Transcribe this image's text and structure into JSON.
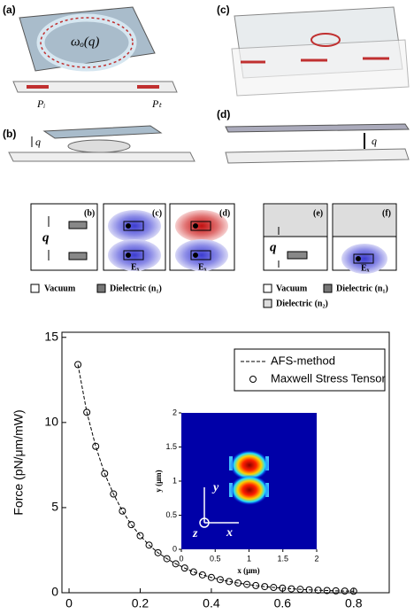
{
  "figure_top": {
    "panel_a": "(a)",
    "panel_b": "(b)",
    "panel_c": "(c)",
    "panel_d": "(d)",
    "resonance": "ωₒ(q)",
    "p_in": "Pᵢ",
    "p_out": "Pₜ",
    "gap_b": "q",
    "gap_d": "q"
  },
  "modes": {
    "panels": [
      "(b)",
      "(c)",
      "(d)",
      "(e)",
      "(f)"
    ],
    "gap_left": "q",
    "gap_right": "q",
    "field_labels": [
      "Eₓ",
      "Eₓ",
      "Eₓ"
    ],
    "legend_left": [
      "Vacuum",
      "Dielectric (n₁)"
    ],
    "legend_right": [
      "Vacuum",
      "Dielectric (n₁)",
      "Dielectric (n₂)"
    ]
  },
  "chart_data": {
    "type": "line",
    "ylabel": "Force (pN/μm/mW)",
    "x": [
      0.025,
      0.05,
      0.075,
      0.1,
      0.125,
      0.15,
      0.175,
      0.2,
      0.225,
      0.25,
      0.275,
      0.3,
      0.325,
      0.35,
      0.375,
      0.4,
      0.425,
      0.45,
      0.475,
      0.5,
      0.525,
      0.55,
      0.575,
      0.6,
      0.625,
      0.65,
      0.675,
      0.7,
      0.725,
      0.75,
      0.775,
      0.8
    ],
    "series": [
      {
        "name": "AFS-method",
        "color": "#000000",
        "style": "dashed",
        "values": [
          13.4,
          10.6,
          8.6,
          7.0,
          5.8,
          4.8,
          4.0,
          3.35,
          2.8,
          2.35,
          2.0,
          1.7,
          1.45,
          1.22,
          1.05,
          0.9,
          0.77,
          0.66,
          0.57,
          0.49,
          0.42,
          0.36,
          0.31,
          0.27,
          0.23,
          0.2,
          0.17,
          0.15,
          0.13,
          0.11,
          0.1,
          0.09
        ]
      },
      {
        "name": "Maxwell Stress Tensor",
        "color": "#000000",
        "style": "circles",
        "values": [
          13.4,
          10.6,
          8.6,
          7.0,
          5.8,
          4.8,
          4.0,
          3.35,
          2.8,
          2.35,
          2.0,
          1.7,
          1.45,
          1.22,
          1.05,
          0.9,
          0.77,
          0.66,
          0.57,
          0.49,
          0.42,
          0.36,
          0.31,
          0.27,
          0.23,
          0.2,
          0.17,
          0.15,
          0.13,
          0.11,
          0.1,
          0.09
        ]
      }
    ],
    "xlim": [
      -0.02,
      0.9
    ],
    "ylim": [
      0,
      15.3
    ],
    "xticks": [
      0,
      0.2,
      0.4,
      0.6,
      0.8
    ],
    "yticks": [
      0,
      5,
      10,
      15
    ],
    "inset": {
      "xlabel": "x (μm)",
      "ylabel": "y (μm)",
      "xlim": [
        0,
        2
      ],
      "ylim": [
        0,
        2
      ],
      "xticks": [
        0,
        0.5,
        1,
        1.5,
        2
      ],
      "yticks": [
        0,
        0.5,
        1,
        1.5,
        2
      ],
      "axis_labels": [
        "y",
        "z",
        "x"
      ]
    }
  }
}
